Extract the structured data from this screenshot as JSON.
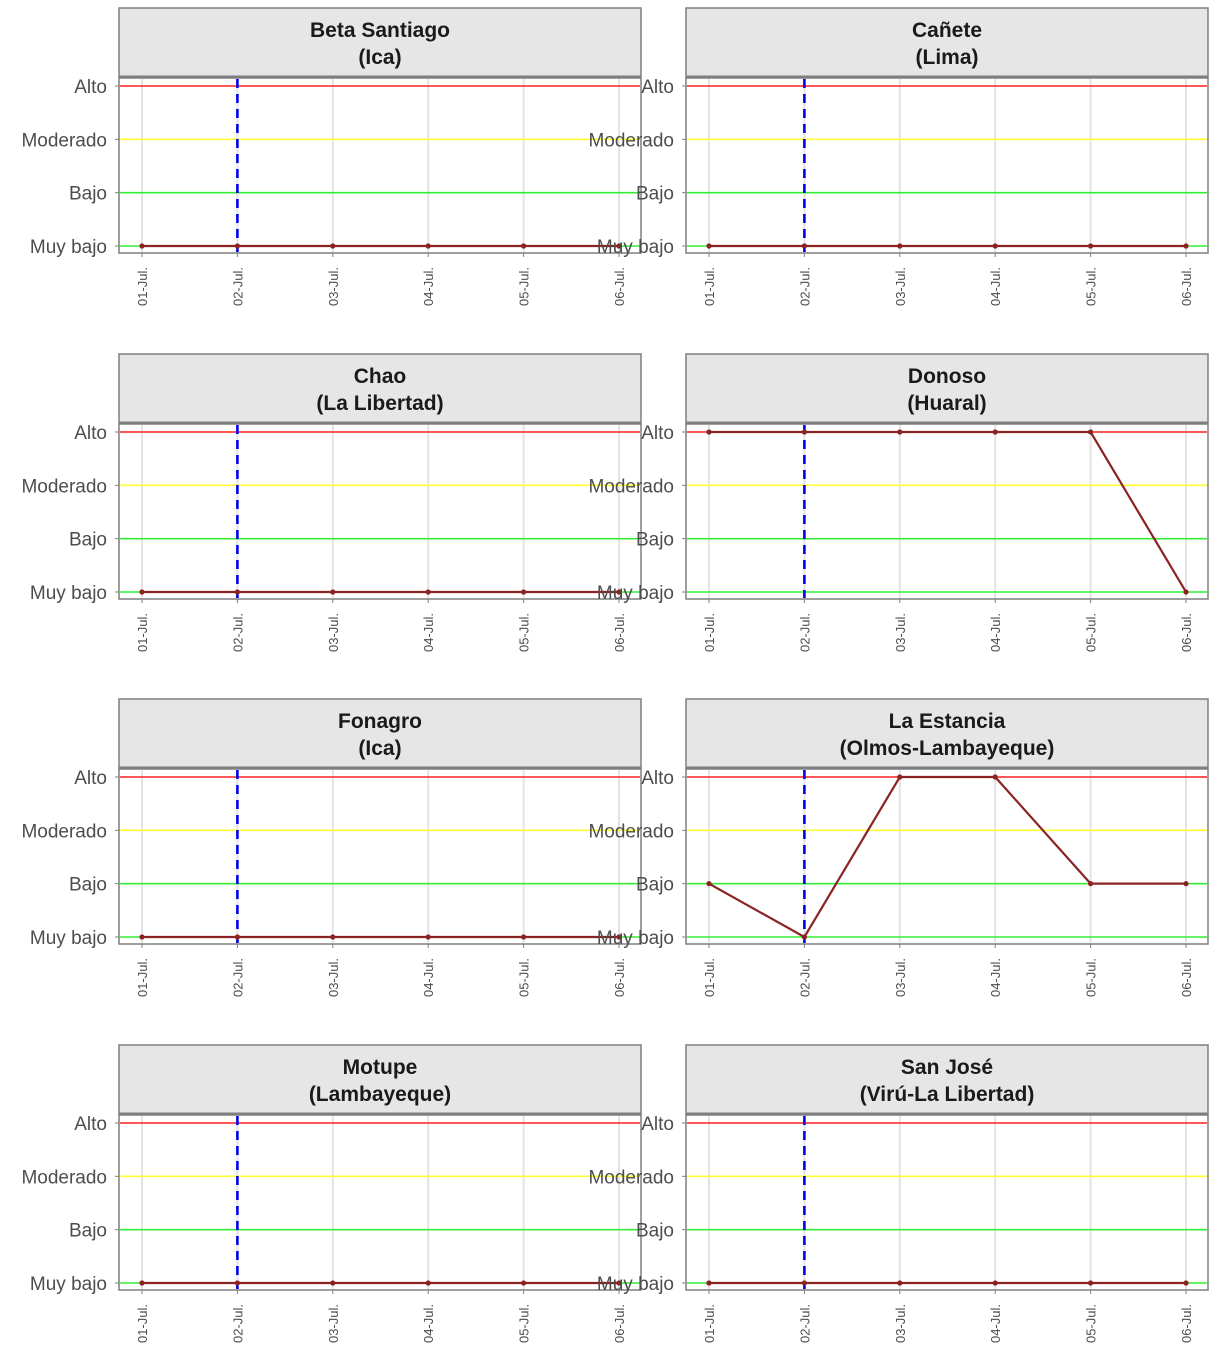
{
  "chart_data": {
    "type": "line",
    "x_labels": [
      "01-Jul.",
      "02-Jul.",
      "03-Jul.",
      "04-Jul.",
      "05-Jul.",
      "06-Jul."
    ],
    "y_levels": [
      "Muy bajo",
      "Bajo",
      "Moderado",
      "Alto"
    ],
    "reference_lines": [
      {
        "level": "Alto",
        "color": "#ff2020"
      },
      {
        "level": "Moderado",
        "color": "#ffff33"
      },
      {
        "level": "Bajo",
        "color": "#33ee33"
      },
      {
        "level": "Muy bajo",
        "color": "#33ee33"
      }
    ],
    "current_date_marker": {
      "x": "02-Jul.",
      "color": "#0000ee",
      "style": "dashed"
    },
    "line_color": "#8b2323",
    "grid": true,
    "panels": [
      {
        "title": "Beta Santiago",
        "subtitle": "(Ica)",
        "values": [
          "Muy bajo",
          "Muy bajo",
          "Muy bajo",
          "Muy bajo",
          "Muy bajo",
          "Muy bajo"
        ]
      },
      {
        "title": "Cañete",
        "subtitle": "(Lima)",
        "values": [
          "Muy bajo",
          "Muy bajo",
          "Muy bajo",
          "Muy bajo",
          "Muy bajo",
          "Muy bajo"
        ]
      },
      {
        "title": "Chao",
        "subtitle": "(La Libertad)",
        "values": [
          "Muy bajo",
          "Muy bajo",
          "Muy bajo",
          "Muy bajo",
          "Muy bajo",
          "Muy bajo"
        ]
      },
      {
        "title": "Donoso",
        "subtitle": "(Huaral)",
        "values": [
          "Alto",
          "Alto",
          "Alto",
          "Alto",
          "Alto",
          "Muy bajo"
        ]
      },
      {
        "title": "Fonagro",
        "subtitle": "(Ica)",
        "values": [
          "Muy bajo",
          "Muy bajo",
          "Muy bajo",
          "Muy bajo",
          "Muy bajo",
          "Muy bajo"
        ]
      },
      {
        "title": "La Estancia",
        "subtitle": "(Olmos-Lambayeque)",
        "values": [
          "Bajo",
          "Muy bajo",
          "Alto",
          "Alto",
          "Bajo",
          "Bajo"
        ]
      },
      {
        "title": "Motupe",
        "subtitle": "(Lambayeque)",
        "values": [
          "Muy bajo",
          "Muy bajo",
          "Muy bajo",
          "Muy bajo",
          "Muy bajo",
          "Muy bajo"
        ]
      },
      {
        "title": "San José",
        "subtitle": "(Virú-La Libertad)",
        "values": [
          "Muy bajo",
          "Muy bajo",
          "Muy bajo",
          "Muy bajo",
          "Muy bajo",
          "Muy bajo"
        ]
      }
    ]
  }
}
